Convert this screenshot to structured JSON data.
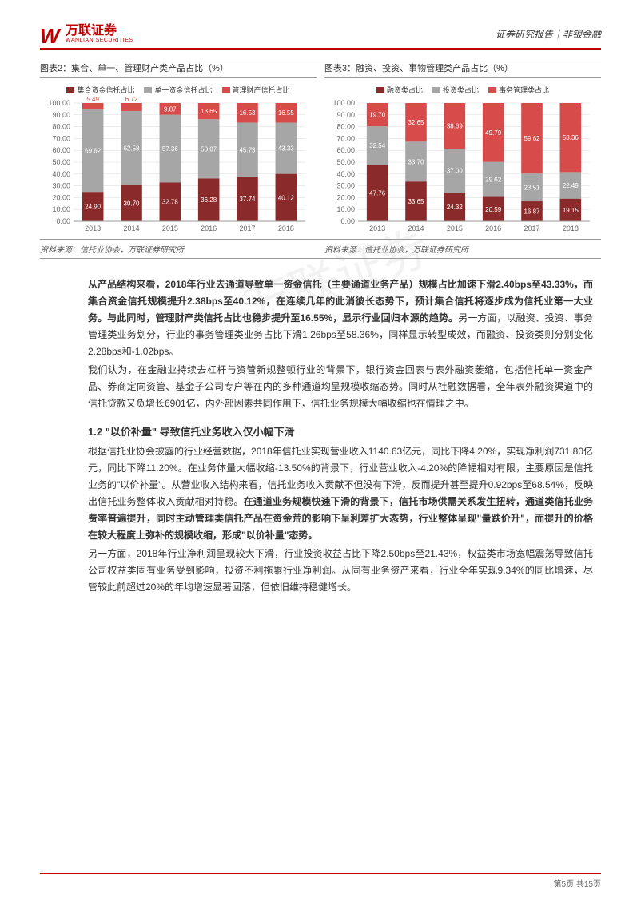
{
  "header": {
    "logo_main": "万联证券",
    "logo_sub": "WANLIAN SECURITIES",
    "right": "证券研究报告｜非银金融"
  },
  "chart2": {
    "title": "图表2：集合、单一、管理财产类产品占比（%）",
    "type": "stacked-bar",
    "legend": [
      "集合资金信托占比",
      "单一资金信托占比",
      "管理财产信托占比"
    ],
    "colors": [
      "#8b2a2a",
      "#a6a6a6",
      "#d84b4b"
    ],
    "categories": [
      "2013",
      "2014",
      "2015",
      "2016",
      "2017",
      "2018"
    ],
    "series_bottom": [
      24.9,
      30.7,
      32.78,
      36.28,
      37.74,
      40.12
    ],
    "series_mid": [
      69.62,
      62.58,
      57.36,
      50.07,
      45.73,
      43.33
    ],
    "series_top": [
      5.49,
      6.72,
      9.87,
      13.65,
      16.53,
      16.55
    ],
    "ylim": [
      0,
      100
    ],
    "ytick_step": 10,
    "background_color": "#ffffff",
    "grid_color": "#d9d9d9",
    "axis_fontsize": 9,
    "label_color": "#ffffff",
    "bar_width": 0.55
  },
  "chart3": {
    "title": "图表3：融资、投资、事物管理类产品占比（%）",
    "type": "stacked-bar",
    "legend": [
      "融资类占比",
      "投资类占比",
      "事务管理类占比"
    ],
    "colors": [
      "#8b2a2a",
      "#a6a6a6",
      "#d84b4b"
    ],
    "categories": [
      "2013",
      "2014",
      "2015",
      "2016",
      "2017",
      "2018"
    ],
    "series_bottom": [
      47.76,
      33.65,
      24.32,
      20.59,
      16.87,
      19.15
    ],
    "series_mid": [
      32.54,
      33.7,
      37.0,
      29.62,
      23.51,
      22.49
    ],
    "series_top": [
      19.7,
      32.65,
      38.69,
      49.79,
      59.62,
      58.36
    ],
    "ylim": [
      0,
      100
    ],
    "ytick_step": 10,
    "background_color": "#ffffff",
    "grid_color": "#d9d9d9",
    "axis_fontsize": 9,
    "label_color": "#ffffff",
    "bar_width": 0.55
  },
  "source": "资料来源：信托业协会，万联证券研究所",
  "body": {
    "p1_bold": "从产品结构来看，2018年行业去通道导致单一资金信托（主要通道业务产品）规模占比加速下滑2.40bps至43.33%，而集合资金信托规模提升2.38bps至40.12%，在连续几年的此消彼长态势下，预计集合信托将逐步成为信托业第一大业务。与此同时，管理财产类信托占比也稳步提升至16.55%，显示行业回归本源的趋势。",
    "p1_tail": "另一方面，以融资、投资、事务管理类业务划分，行业的事务管理类业务占比下滑1.26bps至58.36%，同样显示转型成效，而融资、投资类则分别变化2.28bps和-1.02bps。",
    "p2": "我们认为，在金融业持续去杠杆与资管新规整顿行业的背景下，银行资金回表与表外融资萎缩，包括信托单一资金产品、券商定向资管、基金子公司专户等在内的多种通道均呈规模收缩态势。同时从社融数据看，全年表外融资渠道中的信托贷款又负增长6901亿，内外部因素共同作用下，信托业务规模大幅收缩也在情理之中。",
    "s12_head": "1.2 \"以价补量\" 导致信托业务收入仅小幅下滑",
    "p3_head": "根据信托业协会披露的行业经营数据，2018年信托业实现营业收入1140.63亿元，同比下降4.20%，实现净利润731.80亿元，同比下降11.20%。在业务体量大幅收缩-13.50%的背景下，行业营业收入-4.20%的降幅相对有限，主要原因是信托业务的\"以价补量\"。从营业收入结构来看，信托业务收入贡献不但没有下滑，反而提升甚至提升0.92bps至68.54%，反映出信托业务整体收入贡献相对持稳。",
    "p3_bold": "在通道业务规模快速下滑的背景下，信托市场供需关系发生扭转，通道类信托业务费率普遍提升，同时主动管理类信托产品在资金荒的影响下呈利差扩大态势，行业整体呈现\"量跌价升\"，而提升的价格在较大程度上弥补的规模收缩，形成\"以价补量\"态势。",
    "p4": "另一方面，2018年行业净利润呈现较大下滑，行业投资收益占比下降2.50bps至21.43%，权益类市场宽幅震荡导致信托公司权益类固有业务受到影响，投资不利拖累行业净利润。从固有业务资产来看，行业全年实现9.34%的同比增速，尽管较此前超过20%的年均增速显著回落，但依旧维持稳健增长。"
  },
  "footer": "第5页 共15页",
  "watermark": "万联证券"
}
